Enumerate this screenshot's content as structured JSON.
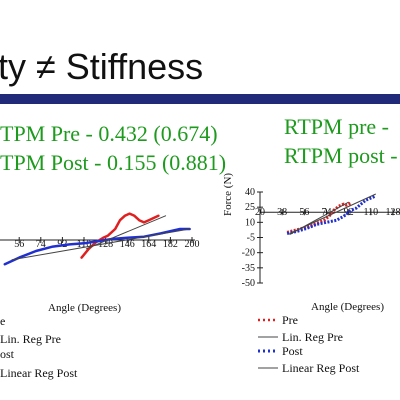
{
  "slide": {
    "title": "ty ≠ Stiffness",
    "accent_color": "#202a78",
    "stat_color": "#1e9a1e"
  },
  "left_panel": {
    "stat_pre": "TPM Pre - 0.432 (0.674)",
    "stat_post": "TPM Post - 0.155 (0.881)",
    "x_axis_title": "Angle (Degrees)",
    "legend": [
      "e",
      "Lin. Reg Pre",
      "ost",
      "Linear Reg Post"
    ]
  },
  "right_panel": {
    "stat_pre": "RTPM pre -",
    "stat_post": "RTPM post -",
    "x_axis_title": "Angle (Degrees)",
    "y_axis_title": "Force (N)",
    "legend": [
      "Pre",
      "Lin. Reg Pre",
      "Post",
      "Linear Reg Post"
    ]
  },
  "chart_data": [
    {
      "type": "line",
      "title": "",
      "xlabel": "Angle (Degrees)",
      "ylabel": "",
      "x_ticks": [
        "56",
        "74",
        "92",
        "110",
        "128",
        "146",
        "164",
        "182",
        "200"
      ],
      "xlim": [
        40,
        200
      ],
      "series": [
        {
          "name": "Pre",
          "color": "#e02020",
          "x": [
            108,
            114,
            120,
            126,
            130,
            136,
            140,
            144,
            148,
            152,
            156,
            160,
            164,
            168,
            172
          ],
          "y": [
            -16,
            -8,
            -2,
            2,
            4,
            10,
            18,
            22,
            24,
            22,
            18,
            16,
            18,
            20,
            22
          ]
        },
        {
          "name": "Post",
          "color": "#2030d0",
          "x": [
            44,
            56,
            70,
            84,
            98,
            110,
            122,
            134,
            146,
            160,
            174,
            190,
            198
          ],
          "y": [
            -22,
            -16,
            -10,
            -6,
            -4,
            -3,
            -1,
            1,
            2,
            3,
            6,
            10,
            10
          ]
        },
        {
          "name": "Lin. Reg Pre",
          "color": "#444444",
          "x": [
            112,
            178
          ],
          "y": [
            -8,
            22
          ]
        },
        {
          "name": "Linear Reg Post",
          "color": "#444444",
          "x": [
            50,
            198
          ],
          "y": [
            -18,
            10
          ]
        }
      ]
    },
    {
      "type": "scatter",
      "title": "",
      "xlabel": "Angle (Degrees)",
      "ylabel": "Force (N)",
      "x_ticks": [
        "20",
        "38",
        "56",
        "74",
        "92",
        "110",
        "128"
      ],
      "y_ticks": [
        "40",
        "25",
        "10",
        "-5",
        "-20",
        "-35",
        "-50"
      ],
      "xlim": [
        20,
        128
      ],
      "ylim": [
        -50,
        40
      ],
      "series": [
        {
          "name": "Pre",
          "color": "#e02020",
          "x": [
            42,
            48,
            54,
            60,
            66,
            72,
            76,
            80,
            84,
            88,
            90,
            94
          ],
          "y": [
            0,
            2,
            4,
            6,
            9,
            12,
            16,
            22,
            26,
            28,
            27,
            29
          ]
        },
        {
          "name": "Post",
          "color": "#2030d0",
          "x": [
            42,
            50,
            58,
            66,
            74,
            82,
            88,
            94,
            98,
            102,
            106,
            110,
            114
          ],
          "y": [
            -1,
            1,
            4,
            8,
            10,
            12,
            16,
            22,
            24,
            28,
            32,
            34,
            36
          ]
        },
        {
          "name": "Lin. Reg Pre",
          "color": "#444444",
          "x": [
            44,
            92
          ],
          "y": [
            -2,
            30
          ]
        },
        {
          "name": "Linear Reg Post",
          "color": "#444444",
          "x": [
            44,
            114
          ],
          "y": [
            -1,
            38
          ]
        }
      ]
    }
  ]
}
